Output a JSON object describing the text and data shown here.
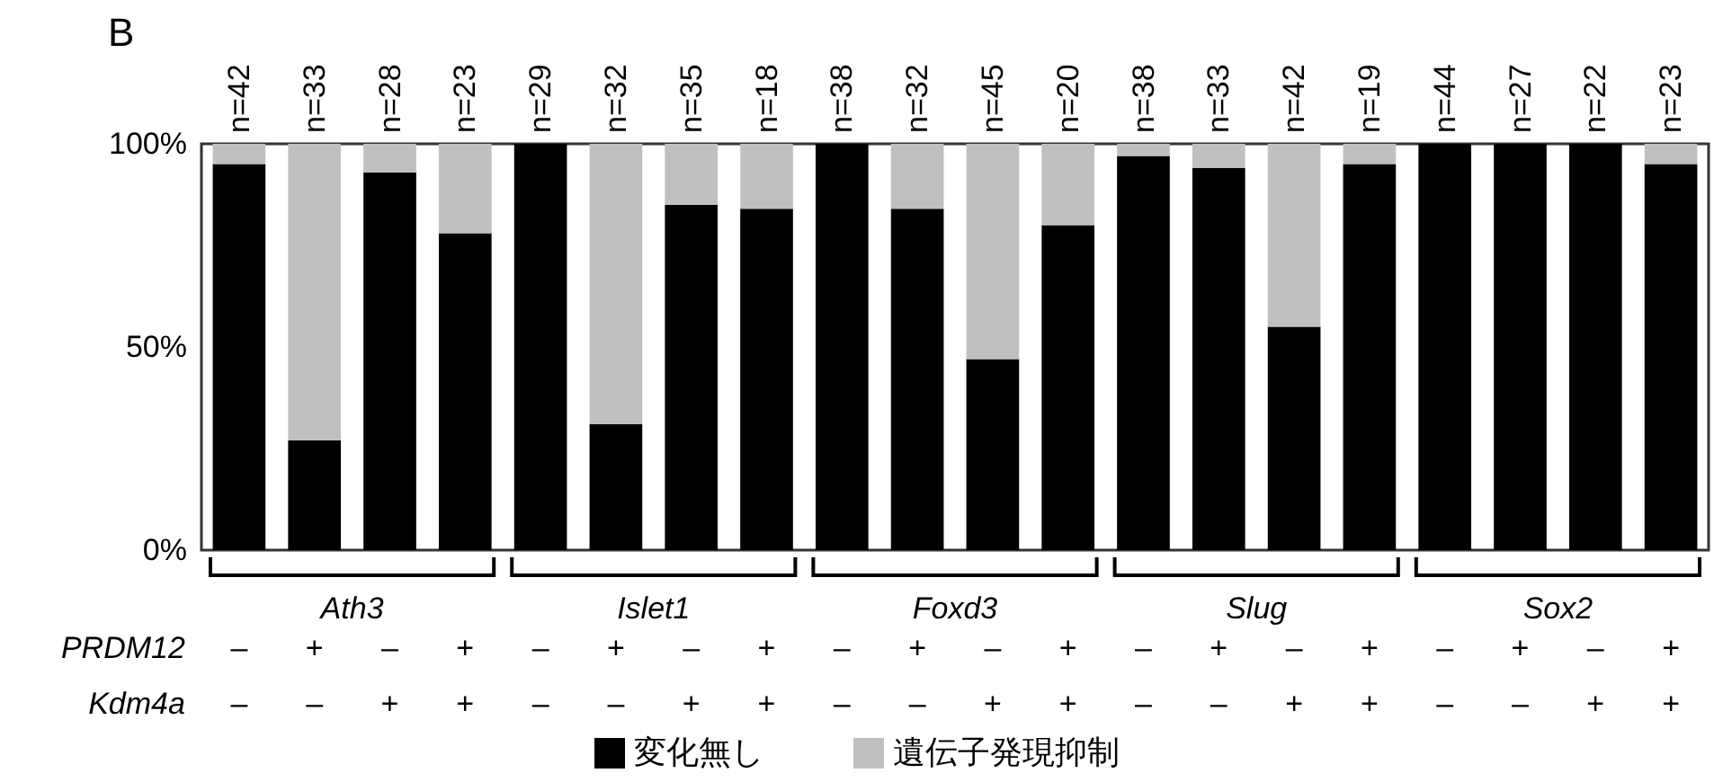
{
  "chart_data": {
    "type": "bar",
    "title": "B",
    "stacked": true,
    "categories": [
      "n=42",
      "n=33",
      "n=28",
      "n=23",
      "n=29",
      "n=32",
      "n=35",
      "n=18",
      "n=38",
      "n=32",
      "n=45",
      "n=20",
      "n=38",
      "n=33",
      "n=42",
      "n=19",
      "n=44",
      "n=27",
      "n=22",
      "n=23"
    ],
    "series": [
      {
        "name": "変化無し",
        "color": "#000000",
        "values": [
          95,
          27,
          93,
          78,
          100,
          31,
          85,
          84,
          100,
          84,
          47,
          80,
          97,
          94,
          55,
          95,
          100,
          100,
          100,
          95
        ]
      },
      {
        "name": "遺伝子発現抑制",
        "color": "#c0c0c0",
        "values": [
          5,
          73,
          7,
          22,
          0,
          69,
          15,
          16,
          0,
          16,
          53,
          20,
          3,
          6,
          45,
          5,
          0,
          0,
          0,
          5
        ]
      }
    ],
    "ylim": [
      0,
      100
    ],
    "yticks": [
      {
        "value": 0,
        "label": "0%"
      },
      {
        "value": 50,
        "label": "50%"
      },
      {
        "value": 100,
        "label": "100%"
      }
    ],
    "legend": "bottom",
    "annotations": [
      "Ath3",
      "Islet1",
      "Foxd3",
      "Slug",
      "Sox2",
      "PRDM12",
      "–",
      "+",
      "–",
      "+",
      "–",
      "+",
      "–",
      "+",
      "–",
      "+",
      "–",
      "+",
      "–",
      "+",
      "–",
      "+",
      "–",
      "+",
      "–",
      "+",
      "Kdm4a",
      "–",
      "–",
      "+",
      "+",
      "–",
      "–",
      "+",
      "+",
      "–",
      "–",
      "+",
      "+",
      "–",
      "–",
      "+",
      "+",
      "–",
      "–",
      "+",
      "+"
    ]
  }
}
